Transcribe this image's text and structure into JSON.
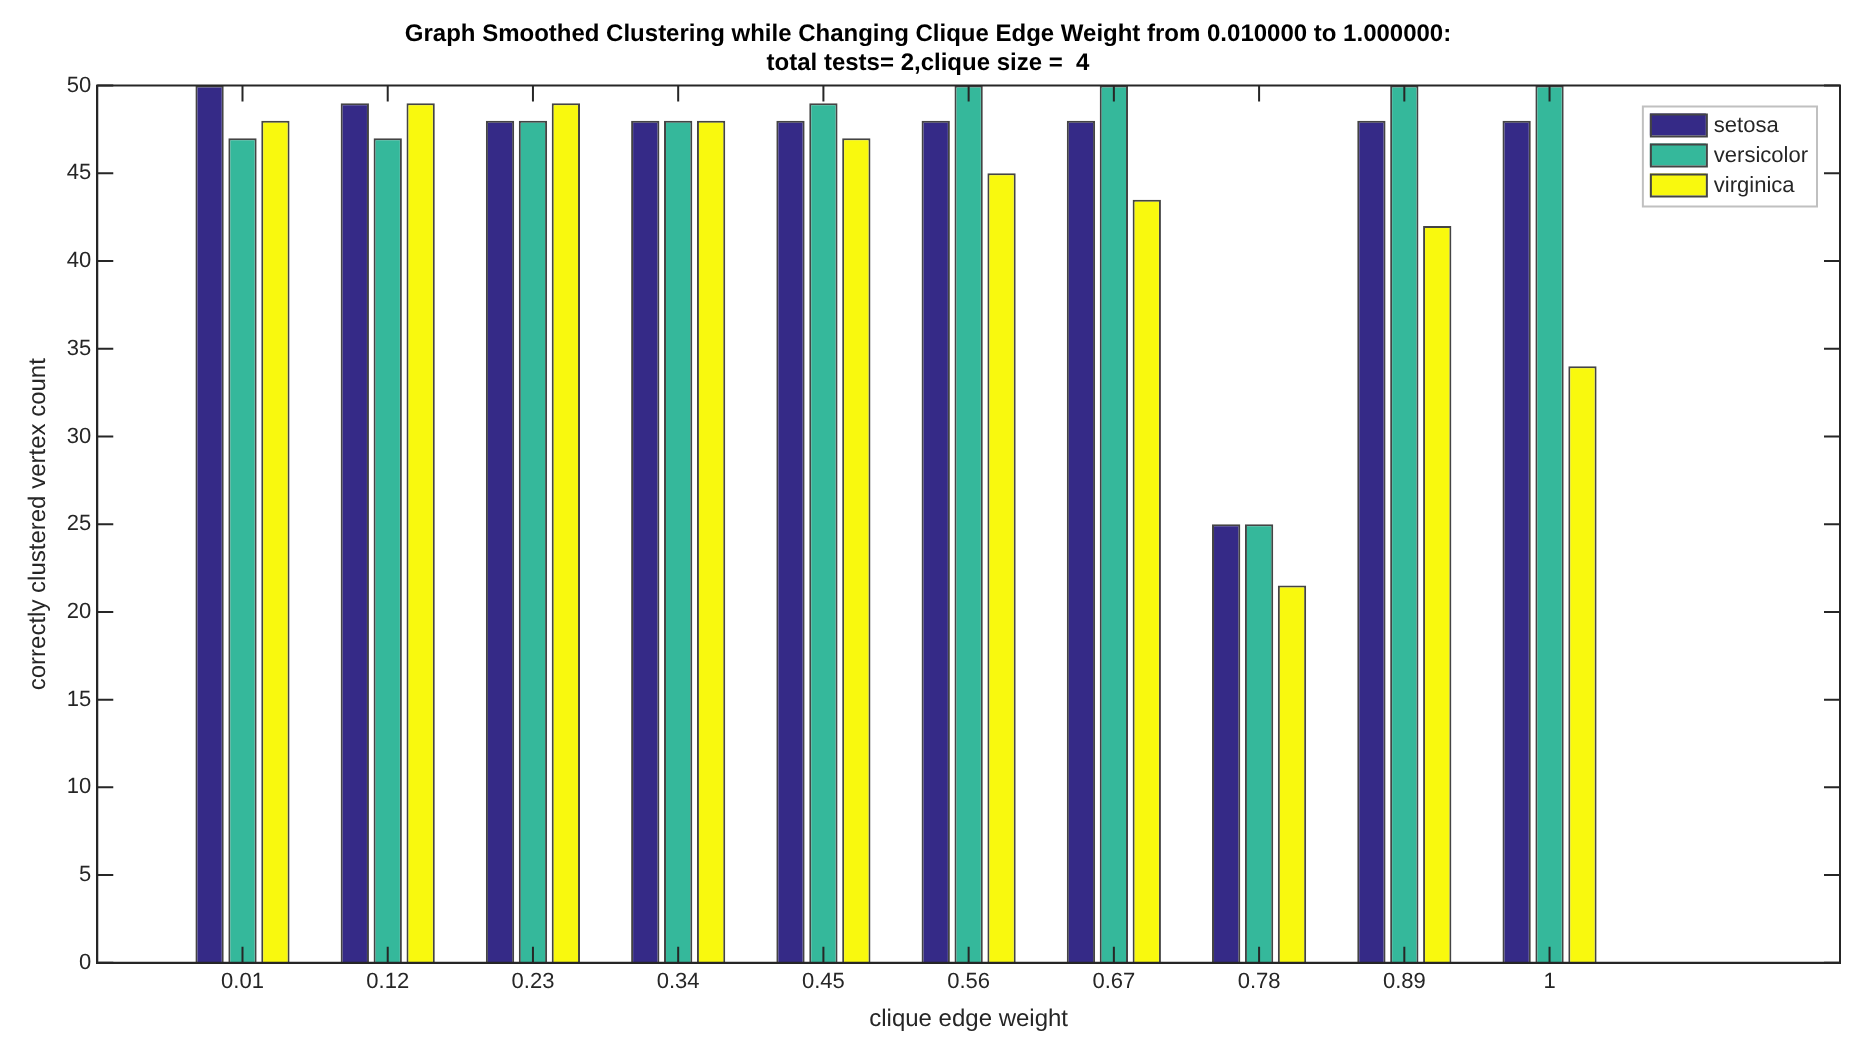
{
  "chart_data": {
    "type": "bar",
    "title": "Graph Smoothed Clustering while Changing Clique Edge Weight from 0.010000 to 1.000000:\ntotal tests= 2,clique size =  4",
    "xlabel": "clique edge weight",
    "ylabel": "correctly clustered vertex count",
    "x": [
      0.01,
      0.12,
      0.23,
      0.34,
      0.45,
      0.56,
      0.67,
      0.78,
      0.89,
      1
    ],
    "series": [
      {
        "name": "setosa",
        "color": "#352a87",
        "values": [
          50,
          49,
          48,
          48,
          48,
          48,
          48,
          25,
          48,
          48
        ]
      },
      {
        "name": "versicolor",
        "color": "#35b89b",
        "values": [
          47,
          47,
          48,
          48,
          49,
          50,
          50,
          25,
          50,
          50
        ]
      },
      {
        "name": "virginica",
        "color": "#f9f90e",
        "values": [
          48,
          49,
          49,
          48,
          47,
          45,
          43.5,
          21.5,
          42,
          34
        ]
      }
    ],
    "xlim": [
      -0.1,
      1.22
    ],
    "xticks": [
      0.01,
      0.12,
      0.23,
      0.34,
      0.45,
      0.56,
      0.67,
      0.78,
      0.89,
      1
    ],
    "ylim": [
      0,
      50
    ],
    "yticks": [
      0,
      5,
      10,
      15,
      20,
      25,
      30,
      35,
      40,
      45,
      50
    ],
    "grid": false,
    "legend": "top right"
  }
}
